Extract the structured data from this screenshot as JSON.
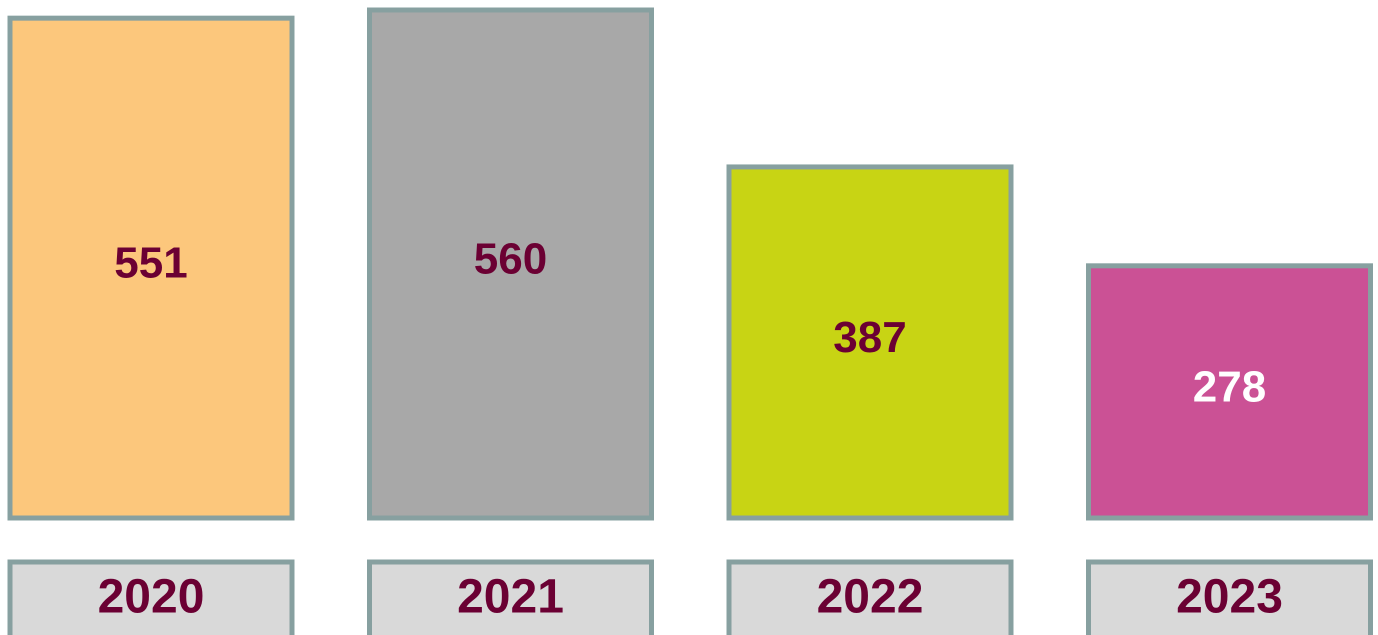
{
  "chart_data": {
    "type": "bar",
    "categories": [
      "2020",
      "2021",
      "2022",
      "2023"
    ],
    "values": [
      551,
      560,
      387,
      278
    ],
    "colors": [
      "#fcc77c",
      "#a8a8a8",
      "#c8d414",
      "#cb5195"
    ],
    "label_colors": [
      "#6b0033",
      "#6b0033",
      "#6b0033",
      "#ffffff"
    ],
    "category_color": "#6b0033",
    "category_box_color": "#d9d9d9",
    "border_color": "#87a0a0"
  }
}
